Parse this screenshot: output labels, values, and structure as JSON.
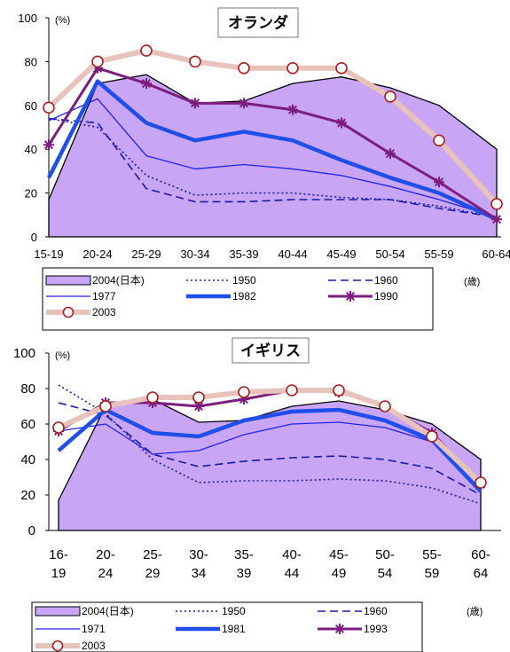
{
  "chart_data": [
    {
      "type": "line",
      "title": "オランダ",
      "y_unit": "(%)",
      "x_unit": "(歳)",
      "ylim": [
        0,
        100
      ],
      "yticks": [
        "0",
        "20",
        "40",
        "60",
        "80",
        "100"
      ],
      "categories": [
        "15-19",
        "20-24",
        "25-29",
        "30-34",
        "35-39",
        "40-44",
        "45-49",
        "50-54",
        "55-59",
        "60-64"
      ],
      "area": {
        "name": "2004(日本)",
        "color": "#c9a5f5",
        "values": [
          17,
          70,
          74,
          61,
          62,
          70,
          73,
          68,
          60,
          40
        ]
      },
      "series": [
        {
          "name": "1950",
          "color": "#1a1aa6",
          "style": "dotted",
          "values": [
            54,
            50,
            28,
            19,
            20,
            20,
            18,
            17,
            14,
            9
          ]
        },
        {
          "name": "1960",
          "color": "#1a1aa6",
          "style": "dashed",
          "values": [
            54,
            52,
            22,
            16,
            16,
            17,
            17,
            17,
            13,
            9
          ]
        },
        {
          "name": "1977",
          "color": "#2222ee",
          "style": "thin",
          "values": [
            53,
            63,
            37,
            31,
            33,
            31,
            28,
            23,
            17,
            9
          ]
        },
        {
          "name": "1982",
          "color": "#1f4fe8",
          "style": "thick",
          "values": [
            27,
            71,
            52,
            44,
            48,
            44,
            35,
            27,
            20,
            8
          ]
        },
        {
          "name": "1990",
          "color": "#7d1d7d",
          "style": "star",
          "values": [
            42,
            77,
            70,
            61,
            61,
            58,
            52,
            38,
            25,
            8
          ]
        },
        {
          "name": "2003",
          "color": "#e7c3bc",
          "style": "circle",
          "values": [
            59,
            80,
            85,
            80,
            77,
            77,
            77,
            64,
            44,
            15
          ]
        }
      ]
    },
    {
      "type": "line",
      "title": "イギリス",
      "y_unit": "(%)",
      "x_unit": "(歳)",
      "ylim": [
        0,
        100
      ],
      "yticks": [
        "0",
        "20",
        "40",
        "60",
        "80",
        "100"
      ],
      "categories": [
        [
          "16-",
          "19"
        ],
        [
          "20-",
          "24"
        ],
        [
          "25-",
          "29"
        ],
        [
          "30-",
          "34"
        ],
        [
          "35-",
          "39"
        ],
        [
          "40-",
          "44"
        ],
        [
          "45-",
          "49"
        ],
        [
          "50-",
          "54"
        ],
        [
          "55-",
          "59"
        ],
        [
          "60-",
          "64"
        ]
      ],
      "area": {
        "name": "2004(日本)",
        "color": "#c9a5f5",
        "values": [
          17,
          70,
          74,
          61,
          62,
          70,
          73,
          68,
          60,
          40
        ]
      },
      "series": [
        {
          "name": "1950",
          "color": "#1a1aa6",
          "style": "dotted",
          "values": [
            82,
            66,
            40,
            27,
            28,
            28,
            29,
            28,
            24,
            15
          ]
        },
        {
          "name": "1960",
          "color": "#1a1aa6",
          "style": "dashed",
          "values": [
            72,
            65,
            43,
            36,
            39,
            41,
            42,
            40,
            35,
            20
          ]
        },
        {
          "name": "1971",
          "color": "#2222ee",
          "style": "thin",
          "values": [
            56,
            60,
            43,
            45,
            54,
            60,
            61,
            58,
            50,
            28
          ]
        },
        {
          "name": "1981",
          "color": "#1f4fe8",
          "style": "thick",
          "values": [
            45,
            68,
            55,
            53,
            62,
            67,
            68,
            62,
            51,
            22
          ]
        },
        {
          "name": "1993",
          "color": "#7d1d7d",
          "style": "star",
          "values": [
            56,
            72,
            72,
            70,
            74,
            79,
            78,
            70,
            55,
            26
          ]
        },
        {
          "name": "2003",
          "color": "#e7c3bc",
          "style": "circle",
          "values": [
            58,
            70,
            75,
            75,
            78,
            79,
            79,
            70,
            53,
            27
          ]
        }
      ]
    }
  ]
}
